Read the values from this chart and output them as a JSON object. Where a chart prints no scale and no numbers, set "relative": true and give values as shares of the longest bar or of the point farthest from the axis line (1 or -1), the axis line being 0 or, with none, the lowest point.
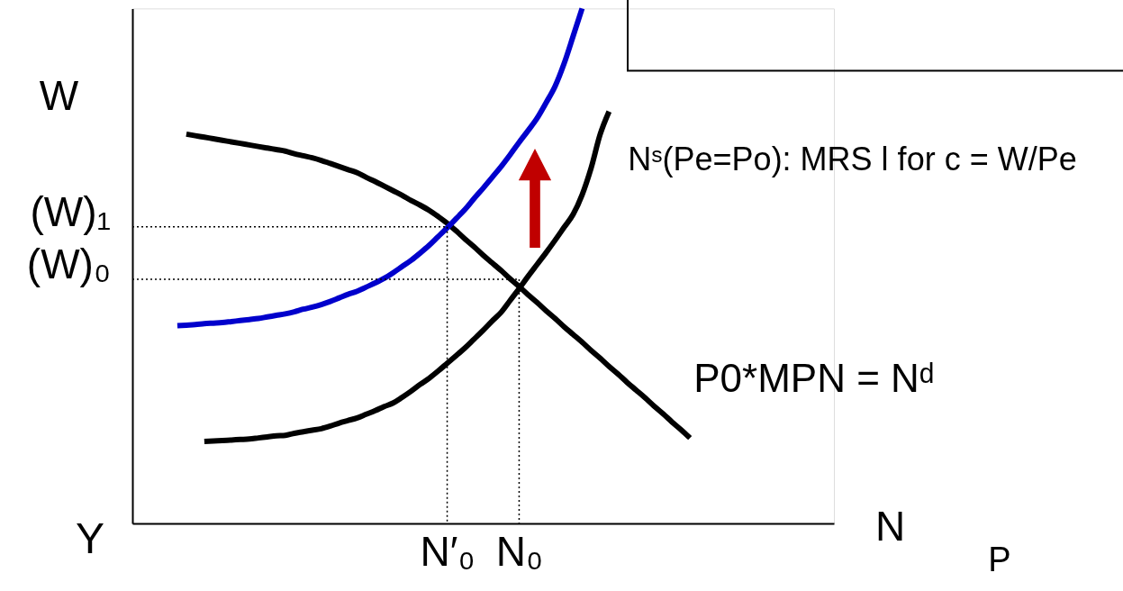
{
  "chart_data": {
    "type": "line",
    "relative": true,
    "xlabel": "N",
    "ylabel": "W",
    "tick_labels": "x",
    "categories": [
      null,
      null,
      null,
      null,
      null,
      null,
      null,
      null,
      null,
      null,
      null,
      null,
      null,
      null,
      null,
      null,
      null,
      null,
      null,
      null,
      null,
      null,
      null,
      null,
      null,
      null,
      null,
      null,
      null,
      null,
      null,
      null,
      null,
      null,
      null,
      "N′₀",
      null,
      null,
      null,
      null,
      null,
      null,
      null,
      "N₀",
      null,
      null,
      null,
      null,
      null,
      null,
      null,
      null,
      null,
      null,
      null,
      null,
      null,
      null,
      null,
      null,
      null,
      null,
      null,
      null,
      null,
      null,
      null,
      null,
      null,
      null,
      null,
      null,
      null,
      null,
      null,
      null,
      null,
      null,
      null
    ],
    "series": [
      {
        "name": "P0*MPN = Nᵈ",
        "color": "#000000",
        "values": [
          null,
          null,
          null,
          null,
          null,
          null,
          0.756,
          0.753,
          0.75,
          0.747,
          0.744,
          0.741,
          0.738,
          0.735,
          0.732,
          0.729,
          0.726,
          0.723,
          0.718,
          0.714,
          0.71,
          0.705,
          0.699,
          0.693,
          0.687,
          0.681,
          0.672,
          0.664,
          0.655,
          0.646,
          0.637,
          0.627,
          0.618,
          0.608,
          0.596,
          0.583,
          0.568,
          0.552,
          0.537,
          0.521,
          0.506,
          0.491,
          0.475,
          0.46,
          0.444,
          0.429,
          0.413,
          0.398,
          0.382,
          0.367,
          0.352,
          0.336,
          0.321,
          0.305,
          0.29,
          0.274,
          0.259,
          0.244,
          0.228,
          0.213,
          0.197,
          0.182,
          0.166,
          null,
          null,
          null,
          null,
          null,
          null,
          null,
          null,
          null,
          null,
          null,
          null,
          null,
          null,
          null,
          null
        ]
      },
      {
        "name": "Nˢ(Pe=Po): MRS l for c = W/Pe",
        "color": "#000000",
        "values": [
          null,
          null,
          null,
          null,
          null,
          null,
          null,
          null,
          0.159,
          0.16,
          0.161,
          0.162,
          0.163,
          0.164,
          0.166,
          0.168,
          0.17,
          0.171,
          0.175,
          0.178,
          0.181,
          0.184,
          0.189,
          0.195,
          0.2,
          0.205,
          0.212,
          0.219,
          0.227,
          0.234,
          0.245,
          0.257,
          0.27,
          0.282,
          0.296,
          0.311,
          0.326,
          0.341,
          0.358,
          0.375,
          0.393,
          0.41,
          0.433,
          0.456,
          0.48,
          0.503,
          0.526,
          0.55,
          0.575,
          0.6,
          0.638,
          0.69,
          0.755,
          0.8,
          null,
          null,
          null,
          null,
          null,
          null,
          null,
          null,
          null,
          null,
          null,
          null,
          null,
          null,
          null,
          null,
          null,
          null,
          null,
          null,
          null,
          null,
          null,
          null,
          null
        ]
      },
      {
        "color": "#0000cc",
        "values": [
          null,
          null,
          null,
          null,
          null,
          0.384,
          0.385,
          0.386,
          0.388,
          0.389,
          0.39,
          0.392,
          0.394,
          0.396,
          0.398,
          0.401,
          0.404,
          0.407,
          0.411,
          0.416,
          0.42,
          0.425,
          0.431,
          0.438,
          0.445,
          0.451,
          0.459,
          0.467,
          0.476,
          0.487,
          0.499,
          0.511,
          0.525,
          0.54,
          0.557,
          0.574,
          0.592,
          0.61,
          0.631,
          0.651,
          0.672,
          0.693,
          0.716,
          0.74,
          0.763,
          0.787,
          0.817,
          0.849,
          0.893,
          0.946,
          1.0,
          null,
          null,
          null,
          null,
          null,
          null,
          null,
          null,
          null,
          null,
          null,
          null,
          null,
          null,
          null,
          null,
          null,
          null,
          null,
          null,
          null,
          null,
          null,
          null,
          null,
          null,
          null,
          null
        ]
      }
    ],
    "ref_lines": [
      {
        "axis": "y",
        "value": 0.576,
        "label": "(W)₁",
        "color": "#000000",
        "line_style": "dotted"
      },
      {
        "axis": "y",
        "value": 0.474,
        "label": "(W)₀",
        "color": "#000000",
        "line_style": "dotted"
      },
      {
        "axis": "x",
        "value": "N′₀",
        "color": "#000000",
        "line_style": "dotted"
      },
      {
        "axis": "x",
        "value": "N₀",
        "color": "#000000",
        "line_style": "dotted"
      }
    ],
    "annotations": [
      "Y",
      "P"
    ]
  }
}
